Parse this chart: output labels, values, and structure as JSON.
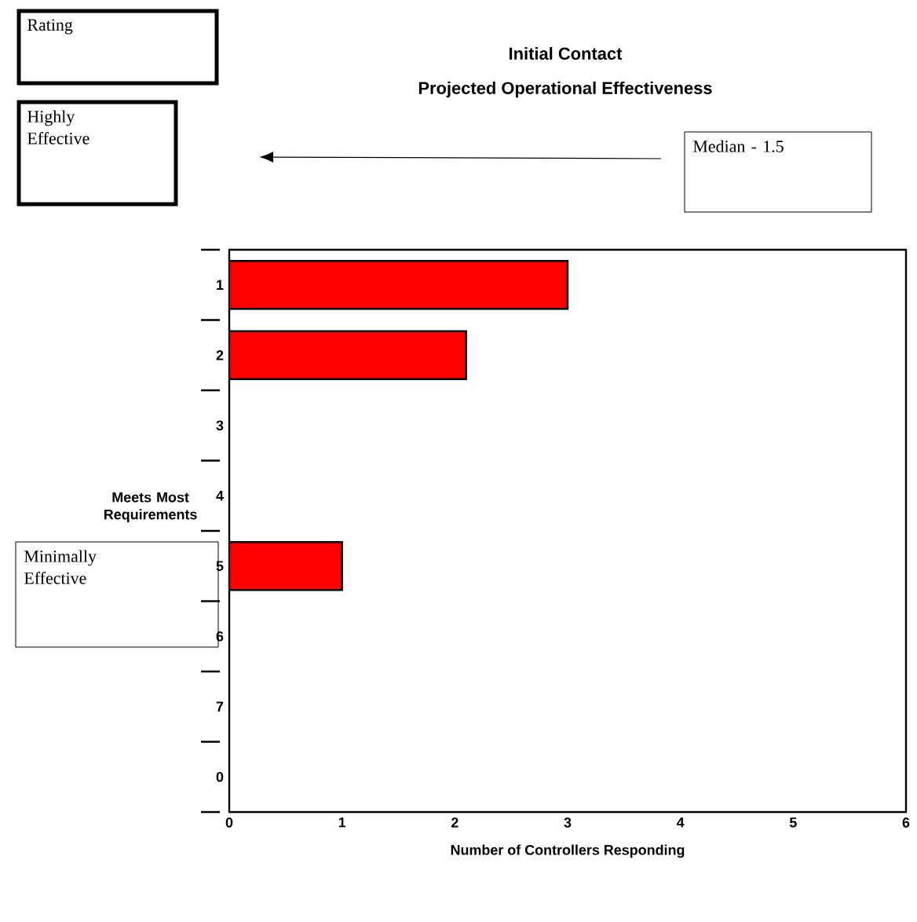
{
  "chart_data": {
    "type": "bar",
    "orientation": "horizontal",
    "title": "Initial Contact",
    "subtitle": "Projected Operational Effectiveness",
    "xlabel": "Number of Controllers Responding",
    "categories": [
      "1",
      "2",
      "3",
      "4",
      "5",
      "6",
      "7",
      "0"
    ],
    "values": [
      3,
      2.1,
      null,
      null,
      1,
      null,
      null,
      null
    ],
    "color": "#ff0000",
    "xlim": [
      0,
      6
    ],
    "xticks": [
      0,
      1,
      2,
      3,
      4,
      5,
      6
    ],
    "grid": false,
    "annotations": [
      "Rating",
      "Highly Effective",
      "Median - 1.5",
      "Meets Most Requirements",
      "Minimally Effective"
    ]
  }
}
